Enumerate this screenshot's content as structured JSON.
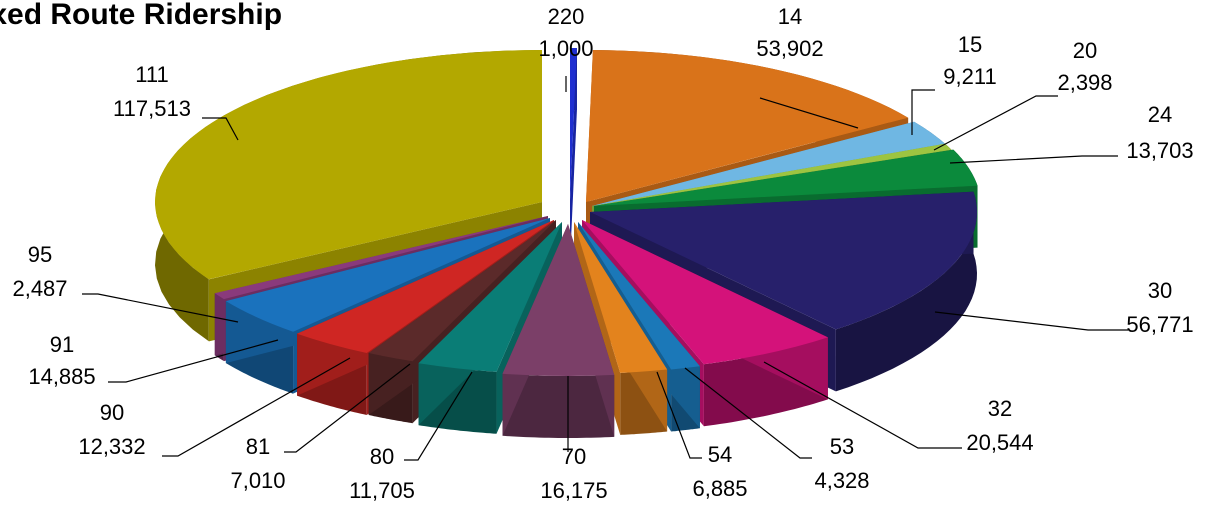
{
  "chart_data": {
    "type": "pie",
    "style": "3d-exploded",
    "title": "ixed Route Ridership",
    "categories": [
      "220",
      "14",
      "15",
      "20",
      "24",
      "30",
      "32",
      "53",
      "54",
      "70",
      "80",
      "81",
      "90",
      "91",
      "95",
      "111"
    ],
    "values": [
      1000,
      53902,
      9211,
      2398,
      13703,
      56771,
      20544,
      4328,
      6885,
      16175,
      11705,
      7010,
      12332,
      14885,
      2487,
      117513
    ],
    "value_labels": [
      "1,000",
      "53,902",
      "9,211",
      "2,398",
      "13,703",
      "56,771",
      "20,544",
      "4,328",
      "6,885",
      "16,175",
      "11,705",
      "7,010",
      "12,332",
      "14,885",
      "2,487",
      "117,513"
    ],
    "colors": [
      "#1f2fd0",
      "#d9731a",
      "#6fb7e3",
      "#9dc441",
      "#0b8a3c",
      "#27206b",
      "#d4127a",
      "#1b78b8",
      "#e3831d",
      "#7b3f68",
      "#0a7d76",
      "#5b2a2a",
      "#cf2623",
      "#1a72bd",
      "#8a3a7c",
      "#b3a800"
    ],
    "legend": "none"
  }
}
